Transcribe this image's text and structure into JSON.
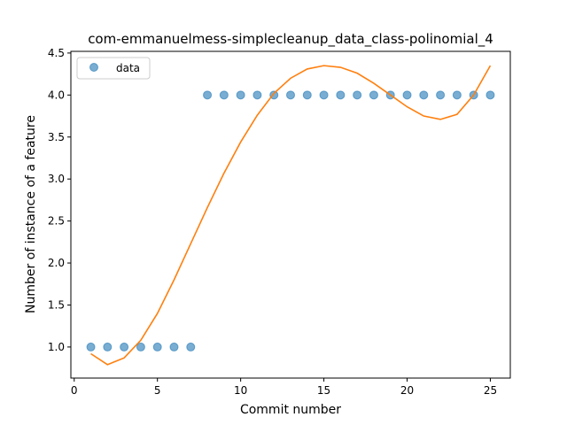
{
  "chart_data": {
    "type": "scatter",
    "title": "com-emmanuelmess-simplecleanup_data_class-polinomial_4",
    "xlabel": "Commit number",
    "ylabel": "Number of instance of a feature",
    "xlim": [
      -0.2,
      26.2
    ],
    "ylim": [
      0.63,
      4.52
    ],
    "xticks": [
      0,
      5,
      10,
      15,
      20,
      25
    ],
    "xtick_labels": [
      "0",
      "5",
      "10",
      "15",
      "20",
      "25"
    ],
    "yticks": [
      1.0,
      1.5,
      2.0,
      2.5,
      3.0,
      3.5,
      4.0,
      4.5
    ],
    "ytick_labels": [
      "1.0",
      "1.5",
      "2.0",
      "2.5",
      "3.0",
      "3.5",
      "4.0",
      "4.5"
    ],
    "grid": false,
    "legend_position": "top-left",
    "series": [
      {
        "name": "data",
        "kind": "scatter",
        "color": "#1f77b4",
        "x": [
          1,
          2,
          3,
          4,
          5,
          6,
          7,
          8,
          9,
          10,
          11,
          12,
          13,
          14,
          15,
          16,
          17,
          18,
          19,
          20,
          21,
          22,
          23,
          24,
          25
        ],
        "y": [
          1,
          1,
          1,
          1,
          1,
          1,
          1,
          4,
          4,
          4,
          4,
          4,
          4,
          4,
          4,
          4,
          4,
          4,
          4,
          4,
          4,
          4,
          4,
          4,
          4
        ]
      },
      {
        "kind": "line",
        "color": "#ff7f0e",
        "x": [
          1,
          2,
          3,
          4,
          5,
          6,
          7,
          8,
          9,
          10,
          11,
          12,
          13,
          14,
          15,
          16,
          17,
          18,
          19,
          20,
          21,
          22,
          23,
          24,
          25
        ],
        "y": [
          0.92,
          0.79,
          0.87,
          1.08,
          1.4,
          1.8,
          2.23,
          2.66,
          3.07,
          3.44,
          3.76,
          4.02,
          4.2,
          4.31,
          4.35,
          4.33,
          4.26,
          4.14,
          4.0,
          3.86,
          3.75,
          3.71,
          3.77,
          4.0,
          4.35
        ]
      }
    ]
  }
}
